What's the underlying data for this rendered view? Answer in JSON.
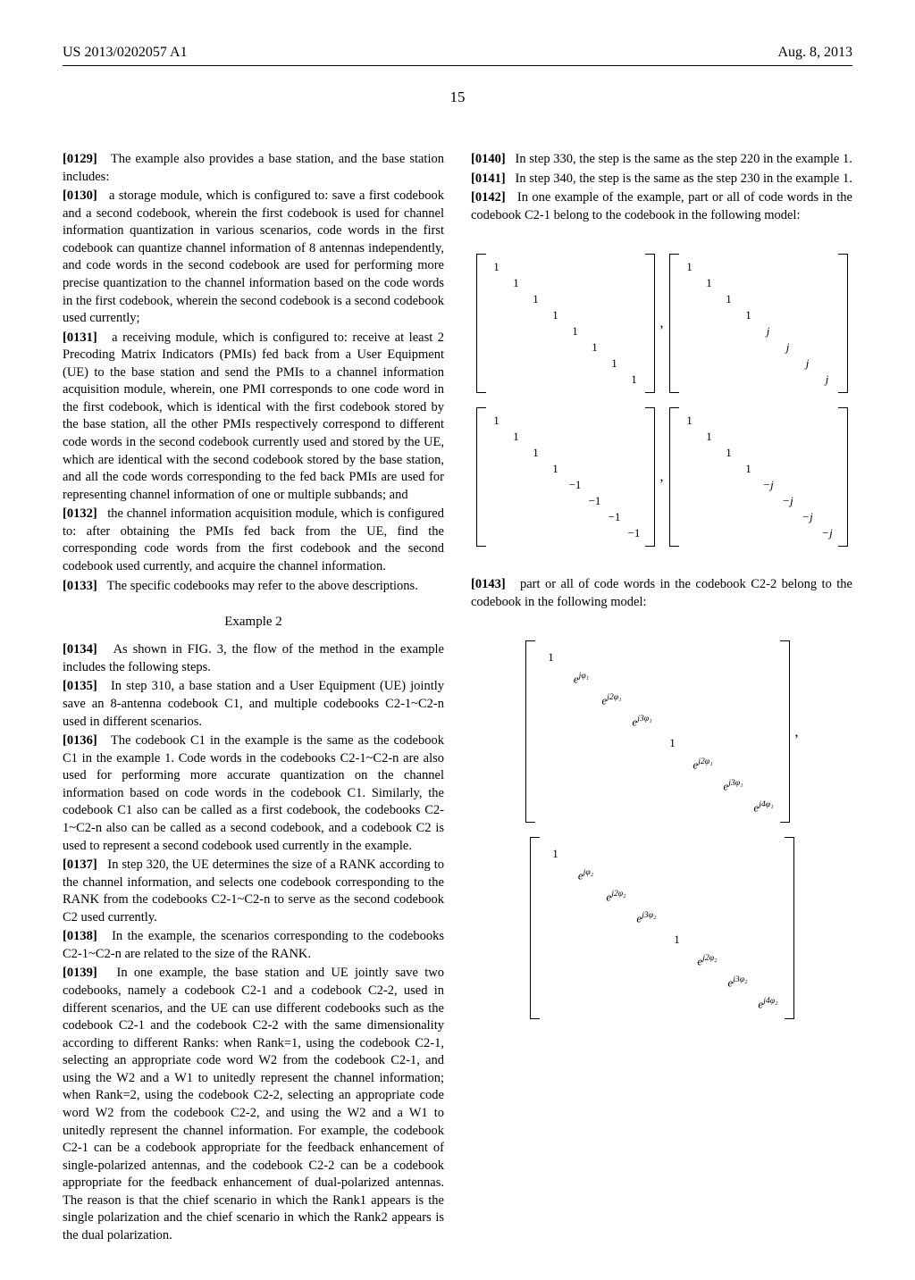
{
  "header": {
    "pub_number": "US 2013/0202057 A1",
    "pub_date": "Aug. 8, 2013"
  },
  "page_number": "15",
  "paras": {
    "p0129": "[0129]    The example also provides a base station, and the base station includes:",
    "p0130": "[0130]    a storage module, which is configured to: save a first codebook and a second codebook, wherein the first codebook is used for channel information quantization in various scenarios, code words in the first codebook can quantize channel information of 8 antennas independently, and code words in the second codebook are used for performing more precise quantization to the channel information based on the code words in the first codebook, wherein the second codebook is a second codebook used currently;",
    "p0131": "[0131]    a receiving module, which is configured to: receive at least 2 Precoding Matrix Indicators (PMIs) fed back from a User Equipment (UE) to the base station and send the PMIs to a channel information acquisition module, wherein, one PMI corresponds to one code word in the first codebook, which is identical with the first codebook stored by the base station, all the other PMIs respectively correspond to different code words in the second codebook currently used and stored by the UE, which are identical with the second codebook stored by the base station, and all the code words corresponding to the fed back PMIs are used for representing channel information of one or multiple subbands; and",
    "p0132": "[0132]    the channel information acquisition module, which is configured to: after obtaining the PMIs fed back from the UE, find the corresponding code words from the first codebook and the second codebook used currently, and acquire the channel information.",
    "p0133": "[0133]    The specific codebooks may refer to the above descriptions.",
    "example2": "Example 2",
    "p0134": "[0134]    As shown in FIG. 3, the flow of the method in the example includes the following steps.",
    "p0135": "[0135]    In step 310, a base station and a User Equipment (UE) jointly save an 8-antenna codebook C1, and multiple codebooks C2-1~C2-n used in different scenarios.",
    "p0136": "[0136]    The codebook C1 in the example is the same as the codebook C1 in the example 1. Code words in the codebooks C2-1~C2-n are also used for performing more accurate quantization on the channel information based on code words in the codebook C1. Similarly, the codebook C1 also can be called as a first codebook, the codebooks C2-1~C2-n also can be called as a second codebook, and a codebook C2 is used to represent a second codebook used currently in the example.",
    "p0137": "[0137]    In step 320, the UE determines the size of a RANK according to the channel information, and selects one codebook corresponding to the RANK from the codebooks C2-1~C2-n to serve as the second codebook C2 used currently.",
    "p0138": "[0138]    In the example, the scenarios corresponding to the codebooks C2-1~C2-n are related to the size of the RANK.",
    "p0139": "[0139]    In one example, the base station and UE jointly save two codebooks, namely a codebook C2-1 and a codebook C2-2, used in different scenarios, and the UE can use different codebooks such as the codebook C2-1 and the codebook C2-2 with the same dimensionality according to different Ranks: when Rank=1, using the codebook C2-1, selecting an appropriate code word W2 from the codebook C2-1, and using the W2 and a W1 to unitedly represent the channel information; when Rank=2, using the codebook C2-2, selecting an appropriate code word W2 from the codebook C2-2, and using the W2 and a W1 to unitedly represent the channel information. For example, the codebook C2-1 can be a codebook appropriate for the feedback enhancement of single-polarized antennas, and the codebook C2-2 can be a codebook appropriate for the feedback enhancement of dual-polarized antennas. The reason is that the chief scenario in which the Rank1 appears is the single polarization and the chief scenario in which the Rank2 appears is the dual polarization.",
    "p0140": "[0140]    In step 330, the step is the same as the step 220 in the example 1.",
    "p0141": "[0141]    In step 340, the step is the same as the step 230 in the example 1.",
    "p0142": "[0142]    In one example of the example, part or all of code words in the codebook C2-1 belong to the codebook in the following model:",
    "p0143": "[0143]    part or all of code words in the codebook C2-2 belong to the codebook in the following model:"
  },
  "matrices": {
    "m1": {
      "diag": [
        "1",
        "1",
        "1",
        "1",
        "1",
        "1",
        "1",
        "1"
      ]
    },
    "m2": {
      "diag": [
        "1",
        "1",
        "1",
        "1",
        "j",
        "j",
        "j",
        "j"
      ]
    },
    "m3": {
      "diag": [
        "1",
        "1",
        "1",
        "1",
        "−1",
        "−1",
        "−1",
        "−1"
      ]
    },
    "m4": {
      "diag": [
        "1",
        "1",
        "1",
        "1",
        "−j",
        "−j",
        "−j",
        "−j"
      ]
    },
    "m5": {
      "diag": [
        "1",
        "e^{jφ₁}",
        "e^{j2φ₁}",
        "e^{j3φ₁}",
        "1",
        "e^{j2φ₁}",
        "e^{j3φ₁}",
        "e^{j4φ₁}"
      ]
    },
    "m6": {
      "diag": [
        "1",
        "e^{jφ₂}",
        "e^{j2φ₂}",
        "e^{j3φ₂}",
        "1",
        "e^{j2φ₂}",
        "e^{j3φ₂}",
        "e^{j4φ₂}"
      ]
    }
  }
}
